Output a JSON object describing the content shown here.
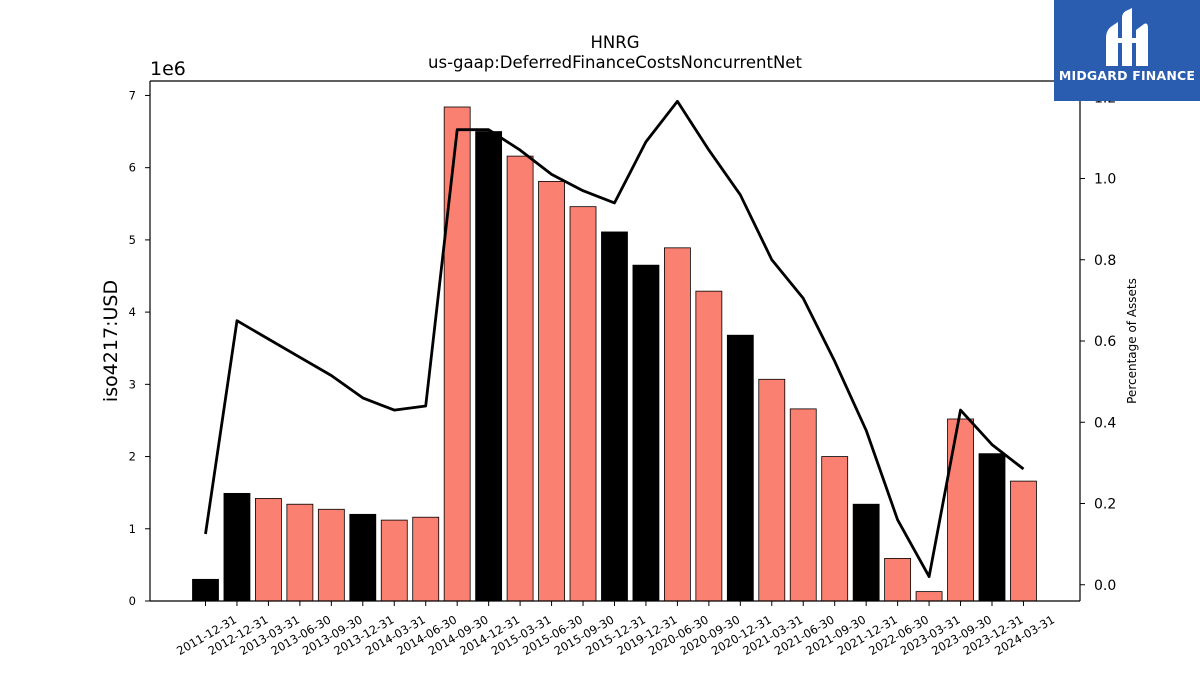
{
  "chart_data": {
    "type": "bar",
    "title": "HNRG",
    "subtitle": "us-gaap:DeferredFinanceCostsNoncurrentNet",
    "ylabel": "iso4217:USD",
    "y_scale_label": "1e6",
    "y2label": "Percentage of Assets",
    "ylim": [
      0,
      7200000
    ],
    "y2lim": [
      -0.04,
      1.24
    ],
    "yticks": [
      "0",
      "1",
      "2",
      "3",
      "4",
      "5",
      "6",
      "7"
    ],
    "y2ticks": [
      "0.0",
      "0.2",
      "0.4",
      "0.6",
      "0.8",
      "1.0",
      "1.2"
    ],
    "categories": [
      "2011-12-31",
      "2012-12-31",
      "2013-03-31",
      "2013-06-30",
      "2013-09-30",
      "2013-12-31",
      "2014-03-31",
      "2014-06-30",
      "2014-09-30",
      "2014-12-31",
      "2015-03-31",
      "2015-06-30",
      "2015-09-30",
      "2015-12-31",
      "2019-12-31",
      "2020-06-30",
      "2020-09-30",
      "2020-12-31",
      "2021-03-31",
      "2021-06-30",
      "2021-09-30",
      "2021-12-31",
      "2022-06-30",
      "2023-03-31",
      "2023-09-30",
      "2023-12-31",
      "2024-03-31"
    ],
    "series": [
      {
        "kind": "bar",
        "values": [
          300000,
          1490000,
          1420000,
          1340000,
          1270000,
          1200000,
          1120000,
          1160000,
          6840000,
          6500000,
          6160000,
          5810000,
          5460000,
          5110000,
          4650000,
          4890000,
          4290000,
          3680000,
          3070000,
          2660000,
          2000000,
          1340000,
          590000,
          130000,
          2520000,
          2040000,
          1660000
        ],
        "highlight": [
          true,
          true,
          false,
          false,
          false,
          true,
          false,
          false,
          false,
          true,
          false,
          false,
          false,
          true,
          true,
          false,
          false,
          true,
          false,
          false,
          false,
          true,
          false,
          false,
          false,
          true,
          false
        ]
      },
      {
        "kind": "line",
        "axis": "right",
        "values": [
          0.125,
          0.65,
          0.605,
          0.56,
          0.515,
          0.46,
          0.43,
          0.44,
          1.12,
          1.12,
          1.07,
          1.01,
          0.97,
          0.94,
          1.09,
          1.19,
          1.07,
          0.96,
          0.8,
          0.705,
          0.55,
          0.38,
          0.16,
          0.02,
          0.43,
          0.345,
          0.285
        ]
      }
    ],
    "colors": {
      "bar": "#fa8072",
      "bar_highlight": "#000000",
      "line": "#000000",
      "bar_edge": "#000000"
    },
    "grid": false
  },
  "logo": {
    "text": "MIDGARD FINANCE",
    "background": "#2a5db0"
  }
}
